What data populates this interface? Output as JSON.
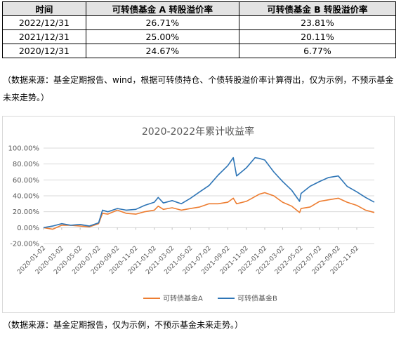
{
  "table": {
    "headers": [
      "时间",
      "可转债基金 A 转股溢价率",
      "可转债基金 B 转股溢价率"
    ],
    "rows": [
      [
        "2022/12/31",
        "26.71%",
        "23.81%"
      ],
      [
        "2021/12/31",
        "25.00%",
        "20.11%"
      ],
      [
        "2020/12/31",
        "24.67%",
        "6.77%"
      ]
    ]
  },
  "note_top": "（数据来源：基金定期报告、wind，根据可转债持仓、个债转股溢价率计算得出，仅为示例，不预示基金未来走势。）",
  "note_bottom": "（数据来源：基金定期报告，仅为示例，不预示基金未来走势。）",
  "colors": {
    "series_a": "#ED7D31",
    "series_b": "#2E75B6",
    "grid": "#d9d9d9",
    "axis_text": "#595959"
  },
  "chart_data": {
    "type": "line",
    "title": "2020-2022年累计收益率",
    "xlabel": "",
    "ylabel": "",
    "ylim": [
      -20,
      100
    ],
    "y_ticks": [
      "-20.00%",
      "0.00%",
      "20.00%",
      "40.00%",
      "60.00%",
      "80.00%",
      "100.00%"
    ],
    "x_ticks": [
      "2020-01-02",
      "2020-03-02",
      "2020-05-02",
      "2020-07-02",
      "2020-09-02",
      "2020-11-02",
      "2021-01-02",
      "2021-03-02",
      "2021-05-02",
      "2021-07-02",
      "2021-09-02",
      "2021-11-02",
      "2022-01-02",
      "2022-03-02",
      "2022-05-02",
      "2022-07-02",
      "2022-09-02",
      "2022-11-02"
    ],
    "grid": true,
    "legend": "bottom",
    "x": [
      "2020-01-02",
      "2020-02-01",
      "2020-03-02",
      "2020-04-01",
      "2020-05-02",
      "2020-06-01",
      "2020-07-02",
      "2020-07-15",
      "2020-08-01",
      "2020-09-02",
      "2020-10-01",
      "2020-11-02",
      "2020-12-01",
      "2021-01-02",
      "2021-01-15",
      "2021-02-01",
      "2021-03-02",
      "2021-04-01",
      "2021-05-02",
      "2021-06-01",
      "2021-07-02",
      "2021-08-01",
      "2021-09-02",
      "2021-09-20",
      "2021-10-01",
      "2021-11-02",
      "2021-12-01",
      "2021-12-15",
      "2022-01-02",
      "2022-02-01",
      "2022-03-02",
      "2022-04-01",
      "2022-04-27",
      "2022-05-02",
      "2022-06-01",
      "2022-07-02",
      "2022-08-01",
      "2022-09-02",
      "2022-10-01",
      "2022-11-02",
      "2022-12-01",
      "2022-12-30"
    ],
    "series": [
      {
        "name": "可转债基金A",
        "values": [
          0,
          -2,
          3,
          3,
          2,
          1,
          5,
          18,
          17,
          22,
          18,
          17,
          20,
          22,
          27,
          23,
          25,
          22,
          24,
          26,
          30,
          30,
          32,
          37,
          30,
          33,
          39,
          42,
          44,
          40,
          32,
          27,
          19,
          24,
          26,
          33,
          35,
          37,
          32,
          28,
          22,
          19
        ]
      },
      {
        "name": "可转债基金B",
        "values": [
          0,
          2,
          5,
          3,
          4,
          2,
          6,
          22,
          20,
          24,
          22,
          23,
          28,
          32,
          38,
          31,
          34,
          30,
          37,
          45,
          53,
          66,
          78,
          88,
          65,
          75,
          88,
          87,
          85,
          70,
          58,
          47,
          33,
          43,
          52,
          58,
          63,
          65,
          52,
          45,
          38,
          32
        ]
      }
    ]
  }
}
